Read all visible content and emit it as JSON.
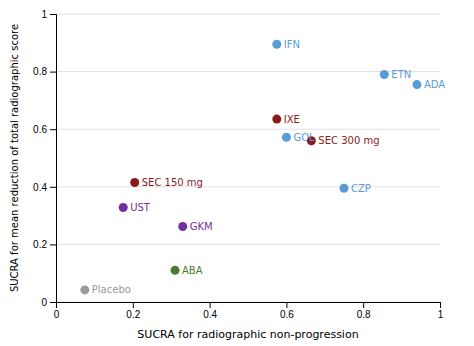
{
  "chart_data": {
    "type": "scatter",
    "labels": [
      "IFN",
      "ETN",
      "ADA",
      "IXE",
      "GOL",
      "SEC 300 mg",
      "SEC 150 mg",
      "CZP",
      "UST",
      "GKM",
      "ABA",
      "Placebo"
    ],
    "x": [
      0.575,
      0.855,
      0.94,
      0.575,
      0.6,
      0.665,
      0.205,
      0.75,
      0.175,
      0.33,
      0.31,
      0.075
    ],
    "values": [
      0.895,
      0.79,
      0.755,
      0.635,
      0.572,
      0.56,
      0.415,
      0.395,
      0.328,
      0.262,
      0.11,
      0.042
    ],
    "colors": [
      "#5b9bd5",
      "#5b9bd5",
      "#5b9bd5",
      "#8b1a1a",
      "#5b9bd5",
      "#8b1a1a",
      "#8b1a1a",
      "#5b9bd5",
      "#7030a0",
      "#7030a0",
      "#4a7c2f",
      "#999999"
    ],
    "xlabel": "SUCRA for radiographic non-progression",
    "ylabel": "SUCRA for mean reduction of total radiographic score",
    "xlim": [
      0,
      1
    ],
    "ylim": [
      0,
      1
    ],
    "xticks": [
      0,
      0.2,
      0.4,
      0.6,
      0.8,
      1
    ],
    "yticks": [
      0,
      0.2,
      0.4,
      0.6,
      0.8,
      1
    ],
    "grid": true
  }
}
